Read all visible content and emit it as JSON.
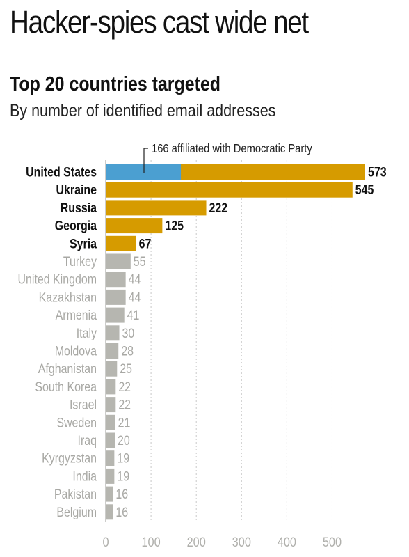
{
  "header": {
    "headline": "Hacker-spies cast wide net",
    "title": "Top 20 countries targeted",
    "subtitle": "By number of identified email addresses"
  },
  "colors": {
    "highlight": "#d69b00",
    "democratic": "#4b9fd1",
    "other": "#b6b6b0",
    "highlight_label": "#111111",
    "other_label": "#a8a8a4",
    "grid": "#c8c8c8",
    "axis_text": "#b0b0ac"
  },
  "chart_data": {
    "type": "bar",
    "orientation": "horizontal",
    "title": "Top 20 countries targeted",
    "subtitle": "By number of identified email addresses",
    "categories": [
      "United States",
      "Ukraine",
      "Russia",
      "Georgia",
      "Syria",
      "Turkey",
      "United Kingdom",
      "Kazakhstan",
      "Armenia",
      "Italy",
      "Moldova",
      "Afghanistan",
      "South Korea",
      "Israel",
      "Sweden",
      "Iraq",
      "Kyrgyzstan",
      "India",
      "Pakistan",
      "Belgium"
    ],
    "values": [
      573,
      545,
      222,
      125,
      67,
      55,
      44,
      44,
      41,
      30,
      28,
      25,
      22,
      22,
      21,
      20,
      19,
      19,
      16,
      16
    ],
    "highlighted_count": 5,
    "segment": {
      "category": "United States",
      "value": 166,
      "label": "166 affiliated with Democratic Party"
    },
    "xlim": [
      0,
      573
    ],
    "xticks": [
      0,
      100,
      200,
      300,
      400,
      500
    ],
    "grid": true,
    "grid_style": "dotted vertical"
  }
}
